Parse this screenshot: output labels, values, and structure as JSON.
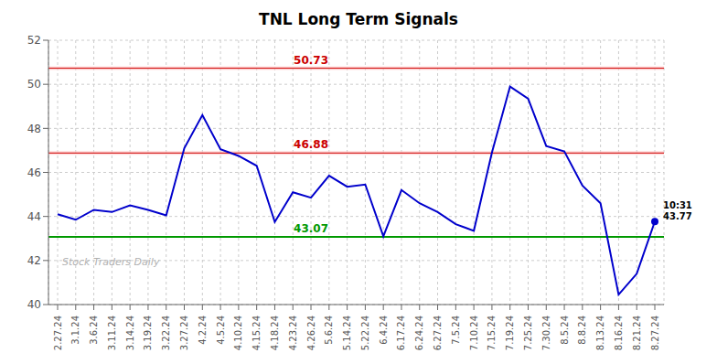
{
  "chart_data": {
    "type": "line",
    "title": "TNL Long Term Signals",
    "categories": [
      "2.27.24",
      "3.1.24",
      "3.6.24",
      "3.11.24",
      "3.14.24",
      "3.19.24",
      "3.22.24",
      "3.27.24",
      "4.2.24",
      "4.5.24",
      "4.10.24",
      "4.15.24",
      "4.18.24",
      "4.23.24",
      "4.26.24",
      "5.6.24",
      "5.14.24",
      "5.22.24",
      "6.4.24",
      "6.17.24",
      "6.24.24",
      "6.27.24",
      "7.5.24",
      "7.10.24",
      "7.15.24",
      "7.19.24",
      "7.25.24",
      "7.30.24",
      "8.5.24",
      "8.8.24",
      "8.13.24",
      "8.16.24",
      "8.21.24",
      "8.27.24"
    ],
    "values": [
      44.1,
      43.85,
      44.3,
      44.2,
      44.5,
      44.3,
      44.05,
      47.1,
      48.6,
      47.05,
      46.75,
      46.3,
      43.75,
      45.1,
      44.85,
      45.85,
      45.35,
      45.45,
      43.1,
      45.2,
      44.6,
      44.2,
      43.65,
      43.35,
      46.9,
      49.9,
      49.35,
      47.2,
      46.95,
      45.4,
      44.6,
      40.45,
      41.4,
      43.77
    ],
    "color": "#0000cc",
    "ylim": [
      40,
      52
    ],
    "yticks": [
      40,
      42,
      44,
      46,
      48,
      50,
      52
    ],
    "grid": true,
    "hlines": [
      {
        "value": 50.73,
        "color": "#cc0000",
        "fill": "#ffcccc",
        "label": "50.73"
      },
      {
        "value": 46.88,
        "color": "#cc0000",
        "fill": "#ffcccc",
        "label": "46.88"
      },
      {
        "value": 43.07,
        "color": "#009900",
        "label": "43.07"
      }
    ],
    "last_point": {
      "category": "8.27.24",
      "value": 43.77,
      "label": "10:31\n43.77"
    },
    "watermark": "Stock Traders Daily"
  }
}
